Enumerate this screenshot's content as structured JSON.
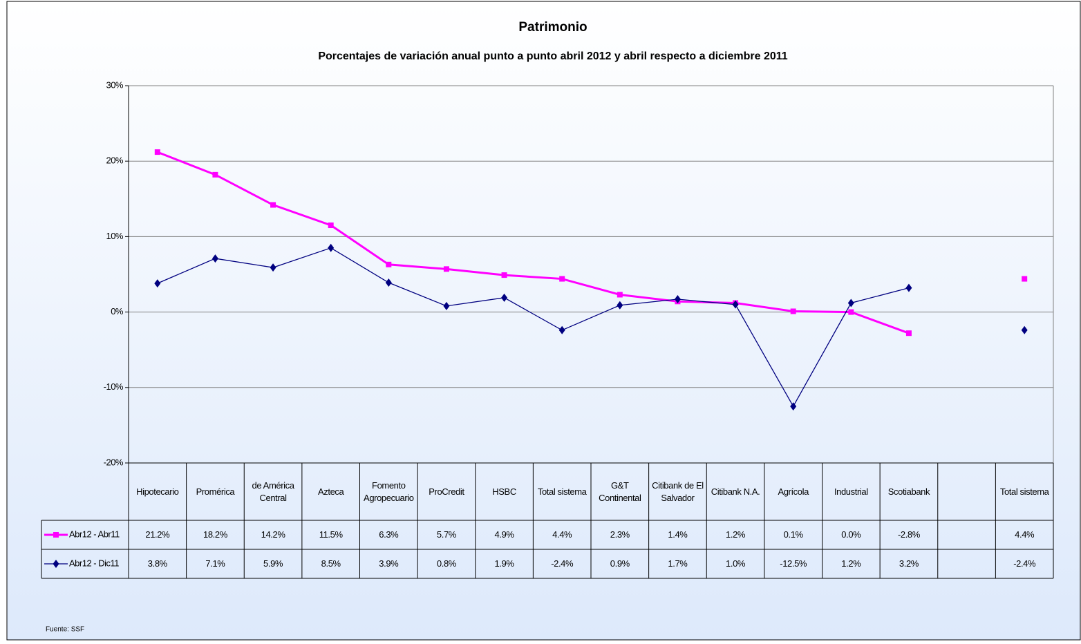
{
  "chart_data": {
    "type": "line",
    "title": "Patrimonio",
    "subtitle": "Porcentajes de variación anual punto a punto abril 2012 y abril respecto a diciembre 2011",
    "categories": [
      "Hipotecario",
      "Promérica",
      "de América Central",
      "Azteca",
      "Fomento Agropecuario",
      "ProCredit",
      "HSBC",
      "Total sistema",
      "G&T Continental",
      "Citibank de El Salvador",
      "Citibank N.A.",
      "Agrícola",
      "Industrial",
      "Scotiabank",
      null,
      "Total sistema"
    ],
    "series": [
      {
        "name": "Abr12 - Abr11",
        "color": "#ff00ff",
        "marker": "square",
        "values": [
          21.2,
          18.2,
          14.2,
          11.5,
          6.3,
          5.7,
          4.9,
          4.4,
          2.3,
          1.4,
          1.2,
          0.1,
          0.0,
          -2.8,
          null,
          4.4
        ],
        "value_labels": [
          "21.2%",
          "18.2%",
          "14.2%",
          "11.5%",
          "6.3%",
          "5.7%",
          "4.9%",
          "4.4%",
          "2.3%",
          "1.4%",
          "1.2%",
          "0.1%",
          "0.0%",
          "-2.8%",
          null,
          "4.4%"
        ]
      },
      {
        "name": "Abr12 - Dic11",
        "color": "#000080",
        "marker": "diamond",
        "values": [
          3.8,
          7.1,
          5.9,
          8.5,
          3.9,
          0.8,
          1.9,
          -2.4,
          0.9,
          1.7,
          1.0,
          -12.5,
          1.2,
          3.2,
          null,
          -2.4
        ],
        "value_labels": [
          "3.8%",
          "7.1%",
          "5.9%",
          "8.5%",
          "3.9%",
          "0.8%",
          "1.9%",
          "-2.4%",
          "0.9%",
          "1.7%",
          "1.0%",
          "-12.5%",
          "1.2%",
          "3.2%",
          null,
          "-2.4%"
        ]
      }
    ],
    "ylim": [
      -20,
      30
    ],
    "yticks": [
      {
        "value": -20,
        "label": "-20%"
      },
      {
        "value": -10,
        "label": "-10%"
      },
      {
        "value": 0,
        "label": "0%"
      },
      {
        "value": 10,
        "label": "10%"
      },
      {
        "value": 20,
        "label": "20%"
      },
      {
        "value": 30,
        "label": "30%"
      }
    ],
    "grid": true,
    "source": "Fuente: SSF"
  }
}
